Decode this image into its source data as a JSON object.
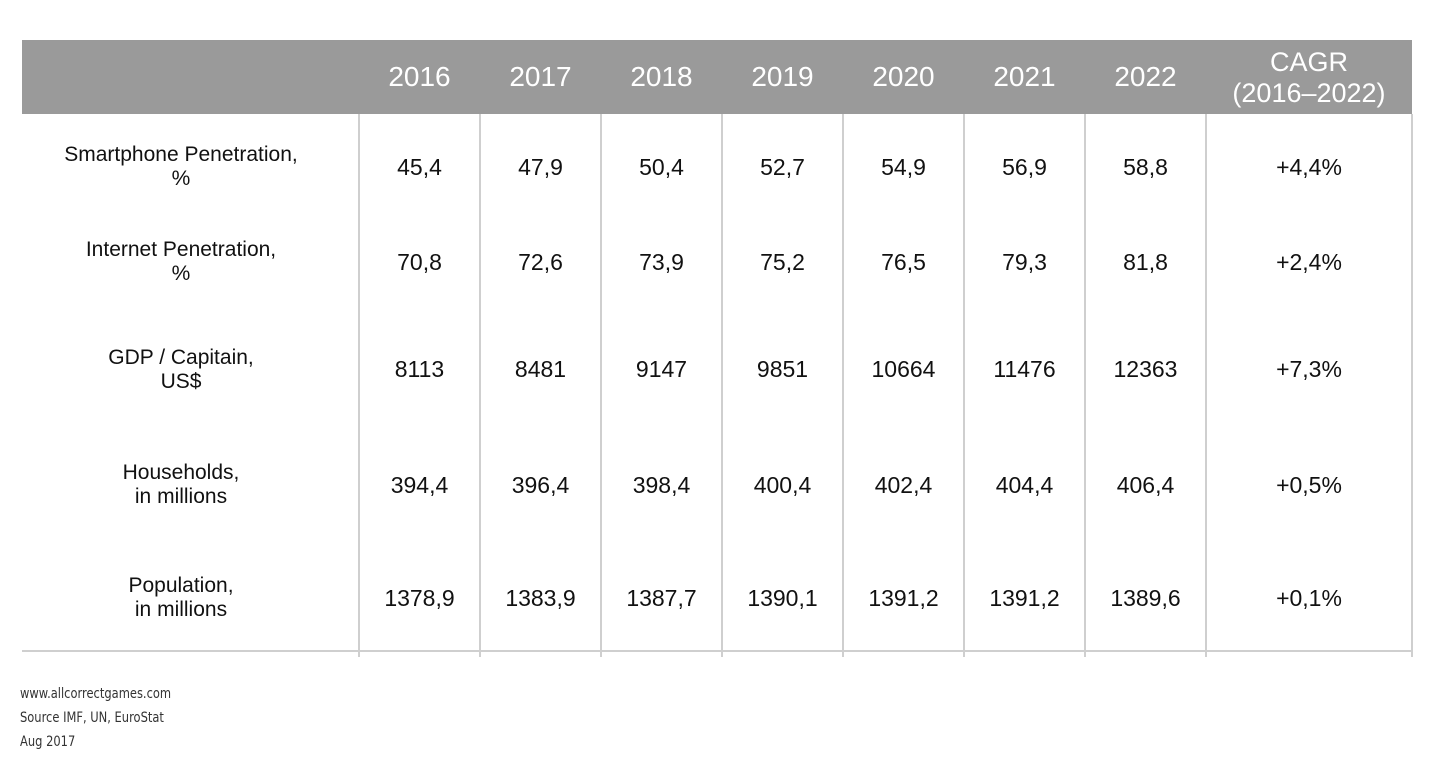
{
  "chart_data": {
    "type": "table",
    "columns": [
      "2016",
      "2017",
      "2018",
      "2019",
      "2020",
      "2021",
      "2022"
    ],
    "cagr_header": [
      "CAGR",
      "(2016–2022)"
    ],
    "rows": [
      {
        "label": [
          "Smartphone Penetration,",
          "%"
        ],
        "values": [
          "45,4",
          "47,9",
          "50,4",
          "52,7",
          "54,9",
          "56,9",
          "58,8"
        ],
        "cagr": "+4,4%"
      },
      {
        "label": [
          "Internet Penetration,",
          "%"
        ],
        "values": [
          "70,8",
          "72,6",
          "73,9",
          "75,2",
          "76,5",
          "79,3",
          "81,8"
        ],
        "cagr": "+2,4%"
      },
      {
        "label": [
          "GDP / Capitain,",
          "US$"
        ],
        "values": [
          "8113",
          "8481",
          "9147",
          "9851",
          "10664",
          "11476",
          "12363"
        ],
        "cagr": "+7,3%"
      },
      {
        "label": [
          "Households,",
          "in millions"
        ],
        "values": [
          "394,4",
          "396,4",
          "398,4",
          "400,4",
          "402,4",
          "404,4",
          "406,4"
        ],
        "cagr": "+0,5%"
      },
      {
        "label": [
          "Population,",
          "in millions"
        ],
        "values": [
          "1378,9",
          "1383,9",
          "1387,7",
          "1390,1",
          "1391,2",
          "1391,2",
          "1389,6"
        ],
        "cagr": "+0,1%"
      }
    ]
  },
  "footer": {
    "website": "www.allcorrectgames.com",
    "source": "Source IMF, UN, EuroStat",
    "date": "Aug 2017"
  },
  "colors": {
    "header_bg": "#9a9a9a",
    "header_text": "#ffffff",
    "grid": "#cfcfcf",
    "text": "#111111"
  }
}
